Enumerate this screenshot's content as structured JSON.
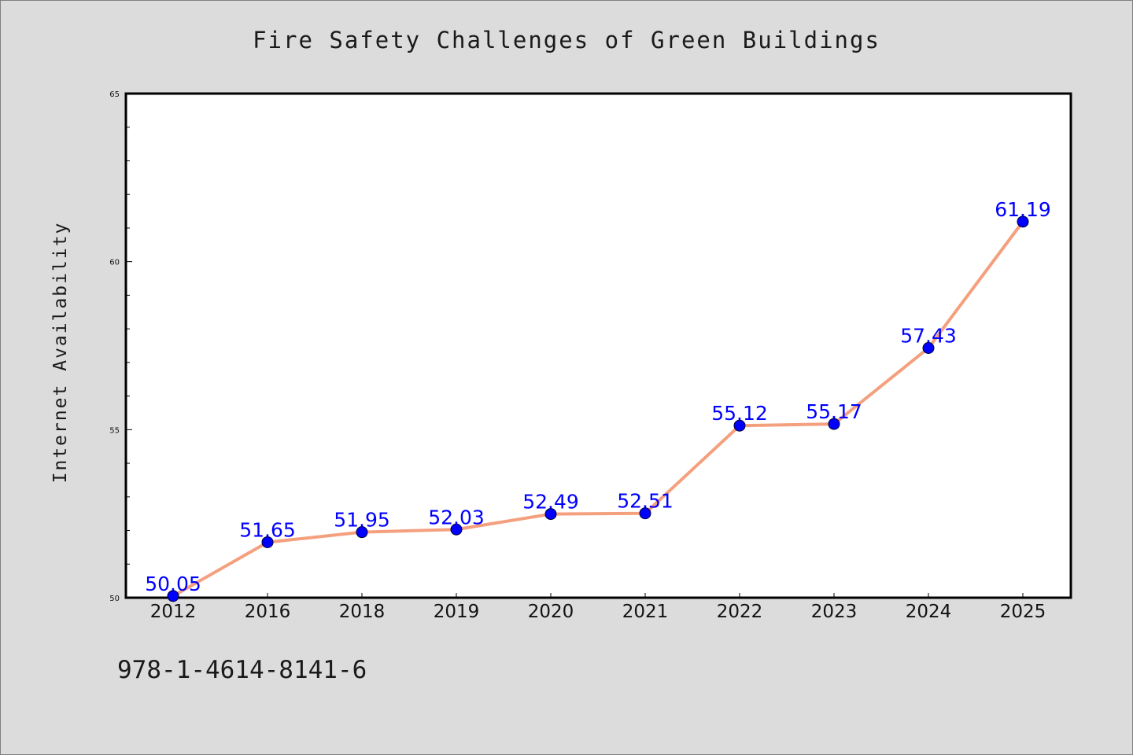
{
  "page": {
    "footnote": "978-1-4614-8141-6",
    "background_color": "#dcdcdc",
    "plot_background": "#ffffff"
  },
  "chart_data": {
    "type": "line",
    "title": "Fire Safety Challenges of Green Buildings",
    "xlabel": "",
    "ylabel": "Internet Availability",
    "categories": [
      "2012",
      "2016",
      "2018",
      "2019",
      "2020",
      "2021",
      "2022",
      "2023",
      "2024",
      "2025"
    ],
    "series": [
      {
        "values": [
          50.05,
          51.65,
          51.95,
          52.03,
          52.49,
          52.51,
          55.12,
          55.17,
          57.43,
          61.19
        ],
        "labels": [
          "50.05",
          "51.65",
          "51.95",
          "52.03",
          "52.49",
          "52.51",
          "55.12",
          "55.17",
          "57.43",
          "61.19"
        ],
        "line_color": "#f4a07e",
        "marker_color": "#0000ff"
      }
    ],
    "ylim": [
      50,
      65
    ],
    "yticks": [
      "50",
      "55",
      "60",
      "65"
    ],
    "grid": false,
    "legend": "none"
  }
}
